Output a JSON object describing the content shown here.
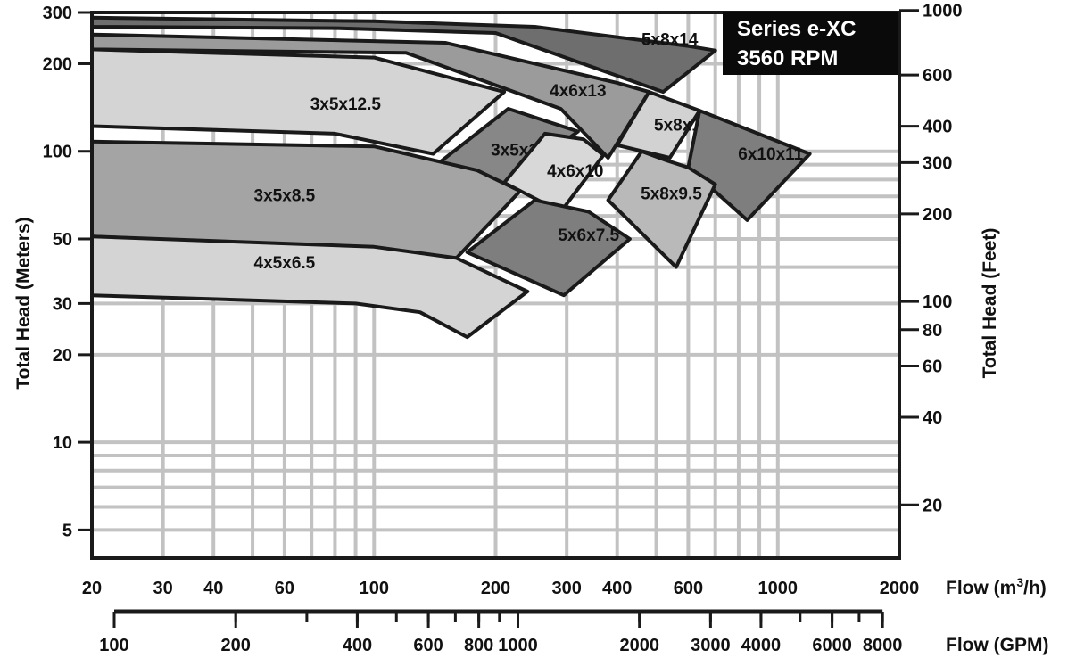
{
  "chart_data": {
    "type": "area",
    "title": "Series e-XC",
    "subtitle": "3560 RPM",
    "x_axis": {
      "label": "Flow (m³/h)",
      "label_base": "Flow (m",
      "label_sup": "3",
      "label_tail": "/h)",
      "scale": "log",
      "range": [
        20,
        2000
      ],
      "ticks": [
        20,
        30,
        40,
        60,
        100,
        200,
        300,
        400,
        600,
        1000,
        2000
      ],
      "tick_labels": [
        "20",
        "30",
        "40",
        "60",
        "100",
        "200",
        "300",
        "400",
        "600",
        "1000",
        "2000"
      ]
    },
    "x2_axis": {
      "label": "Flow (GPM)",
      "scale": "log",
      "ticks": [
        100,
        200,
        400,
        600,
        800,
        1000,
        2000,
        3000,
        4000,
        6000,
        8000
      ],
      "tick_labels": [
        "100",
        "200",
        "400",
        "600",
        "800",
        "1000",
        "2000",
        "3000",
        "4000",
        "6000",
        "8000"
      ]
    },
    "y_axis": {
      "label": "Total Head (Meters)",
      "scale": "log",
      "range": [
        4,
        300
      ],
      "ticks": [
        5,
        10,
        20,
        30,
        50,
        100,
        200,
        300
      ],
      "tick_labels": [
        "5",
        "10",
        "20",
        "30",
        "50",
        "100",
        "200",
        "300"
      ]
    },
    "y2_axis": {
      "label": "Total Head (Feet)",
      "scale": "log",
      "ticks": [
        20,
        40,
        60,
        80,
        100,
        200,
        300,
        400,
        600,
        1000
      ],
      "tick_labels": [
        "20",
        "40",
        "60",
        "80",
        "100",
        "200",
        "300",
        "400",
        "600",
        "1000"
      ]
    },
    "grid": true,
    "regions": [
      {
        "label": "5x8x14",
        "shade": "#6e6e6e",
        "label_at": [
          540,
          240
        ],
        "points": [
          [
            20,
            288
          ],
          [
            100,
            280
          ],
          [
            250,
            268
          ],
          [
            600,
            230
          ],
          [
            700,
            222
          ],
          [
            520,
            160
          ],
          [
            200,
            255
          ],
          [
            80,
            265
          ],
          [
            20,
            268
          ]
        ]
      },
      {
        "label": "4x6x13",
        "shade": "#9b9b9b",
        "label_at": [
          320,
          160
        ],
        "points": [
          [
            20,
            252
          ],
          [
            150,
            236
          ],
          [
            400,
            172
          ],
          [
            480,
            160
          ],
          [
            380,
            95
          ],
          [
            290,
            140
          ],
          [
            120,
            218
          ],
          [
            20,
            224
          ]
        ]
      },
      {
        "label": "3x5x12.5",
        "shade": "#d4d4d4",
        "label_at": [
          85,
          144
        ],
        "points": [
          [
            20,
            224
          ],
          [
            100,
            210
          ],
          [
            210,
            160
          ],
          [
            140,
            98
          ],
          [
            80,
            115
          ],
          [
            20,
            122
          ]
        ]
      },
      {
        "label": "3x5x11",
        "shade": "#878787",
        "label_at": [
          228,
          100
        ],
        "points": [
          [
            215,
            140
          ],
          [
            320,
            117
          ],
          [
            210,
            77
          ],
          [
            140,
            88
          ]
        ]
      },
      {
        "label": "4x6x10",
        "shade": "#d8d8d8",
        "label_at": [
          315,
          85
        ],
        "points": [
          [
            265,
            115
          ],
          [
            330,
            110
          ],
          [
            370,
            97
          ],
          [
            290,
            62
          ],
          [
            210,
            78
          ]
        ]
      },
      {
        "label": "5x8x12",
        "shade": "#d2d2d2",
        "label_at": [
          580,
          122
        ],
        "points": [
          [
            480,
            160
          ],
          [
            640,
            138
          ],
          [
            540,
            95
          ],
          [
            400,
            105
          ]
        ]
      },
      {
        "label": "6x10x11",
        "shade": "#7e7e7e",
        "label_at": [
          960,
          97
        ],
        "points": [
          [
            640,
            138
          ],
          [
            1200,
            98
          ],
          [
            840,
            58
          ],
          [
            600,
            88
          ]
        ]
      },
      {
        "label": "5x8x9.5",
        "shade": "#b9b9b9",
        "label_at": [
          545,
          71
        ],
        "points": [
          [
            460,
            100
          ],
          [
            530,
            93
          ],
          [
            600,
            88
          ],
          [
            700,
            77
          ],
          [
            560,
            40
          ],
          [
            380,
            68
          ]
        ]
      },
      {
        "label": "3x5x8.5",
        "shade": "#a4a4a4",
        "label_at": [
          60,
          70
        ],
        "points": [
          [
            20,
            108
          ],
          [
            100,
            104
          ],
          [
            180,
            86
          ],
          [
            230,
            73
          ],
          [
            160,
            43
          ],
          [
            100,
            46
          ],
          [
            20,
            51
          ]
        ]
      },
      {
        "label": "5x6x7.5",
        "shade": "#7e7e7e",
        "label_at": [
          340,
          51
        ],
        "points": [
          [
            250,
            68
          ],
          [
            340,
            62
          ],
          [
            430,
            50
          ],
          [
            295,
            32
          ],
          [
            170,
            45
          ]
        ]
      },
      {
        "label": "4x5x6.5",
        "shade": "#d4d4d4",
        "label_at": [
          60,
          41
        ],
        "points": [
          [
            20,
            51
          ],
          [
            100,
            47
          ],
          [
            160,
            43
          ],
          [
            240,
            33
          ],
          [
            170,
            23
          ],
          [
            130,
            28
          ],
          [
            90,
            30
          ],
          [
            20,
            32
          ]
        ]
      }
    ]
  }
}
